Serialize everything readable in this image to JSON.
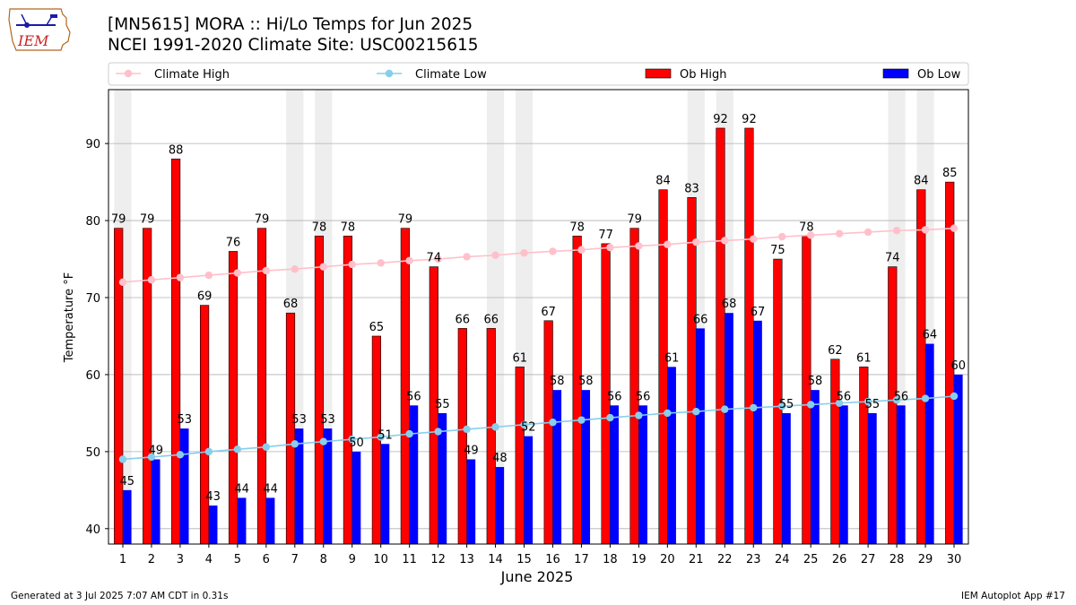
{
  "header": {
    "title_line1": "[MN5615] MORA :: Hi/Lo Temps for Jun 2025",
    "title_line2": "NCEI 1991-2020 Climate Site: USC00215615",
    "logo_text": "IEM"
  },
  "footer": {
    "generated": "Generated at 3 Jul 2025 7:07 AM CDT in 0.31s",
    "app": "IEM Autoplot App #17"
  },
  "colors": {
    "ob_high": "#ff0000",
    "ob_low": "#0000ff",
    "climate_high": "#ffc0cb",
    "climate_low": "#87ceeb",
    "weekend_shade": "#eeeeee",
    "grid": "#b0b0b0"
  },
  "chart_data": {
    "type": "bar",
    "xlabel": "June 2025",
    "ylabel": "Temperature °F",
    "ylim": [
      38,
      97
    ],
    "yticks": [
      40,
      50,
      60,
      70,
      80,
      90
    ],
    "grid": "horizontal",
    "legend_placement": "top",
    "categories": [
      "1",
      "2",
      "3",
      "4",
      "5",
      "6",
      "7",
      "8",
      "9",
      "10",
      "11",
      "12",
      "13",
      "14",
      "15",
      "16",
      "17",
      "18",
      "19",
      "20",
      "21",
      "22",
      "23",
      "24",
      "25",
      "26",
      "27",
      "28",
      "29",
      "30"
    ],
    "shaded_days": [
      "1",
      "7",
      "8",
      "14",
      "15",
      "21",
      "22",
      "28",
      "29"
    ],
    "series": [
      {
        "name": "Climate High",
        "kind": "line",
        "values": [
          72.0,
          72.3,
          72.6,
          72.9,
          73.2,
          73.5,
          73.7,
          74.0,
          74.3,
          74.5,
          74.8,
          75.0,
          75.3,
          75.5,
          75.8,
          76.0,
          76.2,
          76.5,
          76.7,
          76.9,
          77.2,
          77.4,
          77.6,
          77.9,
          78.1,
          78.3,
          78.5,
          78.7,
          78.8,
          79.0
        ]
      },
      {
        "name": "Climate Low",
        "kind": "line",
        "values": [
          49.0,
          49.3,
          49.6,
          50.0,
          50.3,
          50.6,
          51.0,
          51.3,
          51.6,
          51.9,
          52.3,
          52.6,
          52.9,
          53.2,
          53.5,
          53.8,
          54.1,
          54.4,
          54.7,
          55.0,
          55.2,
          55.5,
          55.7,
          55.9,
          56.1,
          56.3,
          56.5,
          56.7,
          56.9,
          57.2
        ]
      },
      {
        "name": "Ob High",
        "kind": "bar",
        "values": [
          79,
          79,
          88,
          69,
          76,
          79,
          68,
          78,
          78,
          65,
          79,
          74,
          66,
          66,
          61,
          67,
          78,
          77,
          79,
          84,
          83,
          92,
          92,
          75,
          78,
          62,
          61,
          74,
          84,
          85
        ]
      },
      {
        "name": "Ob Low",
        "kind": "bar",
        "values": [
          45,
          49,
          53,
          43,
          44,
          44,
          53,
          53,
          50,
          51,
          56,
          55,
          49,
          48,
          52,
          58,
          58,
          56,
          56,
          61,
          66,
          68,
          67,
          55,
          58,
          56,
          55,
          56,
          64,
          60
        ]
      }
    ]
  }
}
